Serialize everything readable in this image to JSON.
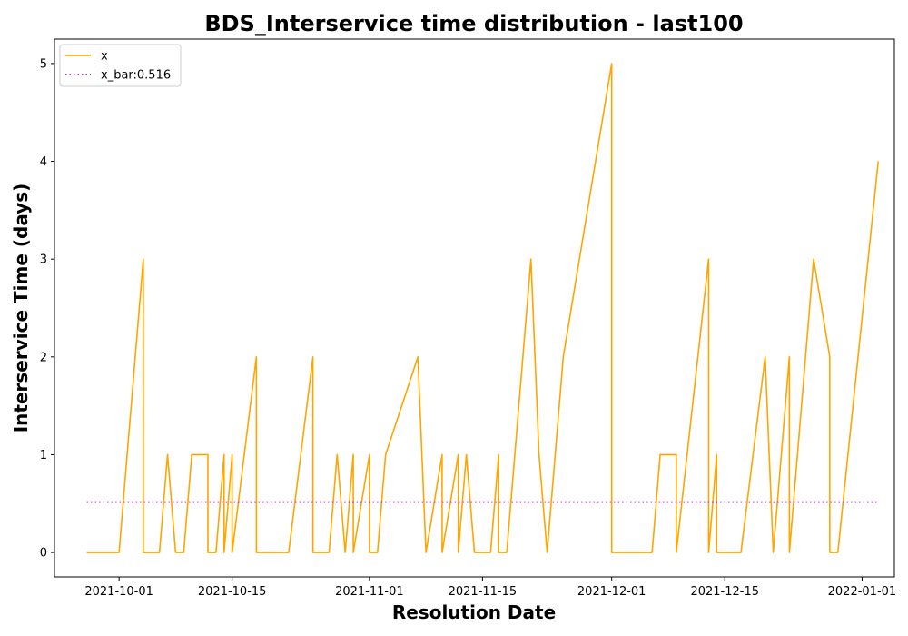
{
  "chart_data": {
    "type": "line",
    "title": "BDS_Interservice time distribution - last100",
    "xlabel": "Resolution Date",
    "ylabel": "Interservice Time (days)",
    "xlim": [
      "2021-09-23",
      "2022-01-05"
    ],
    "ylim": [
      -0.25,
      5.25
    ],
    "xticks": [
      "2021-10-01",
      "2021-10-15",
      "2021-11-01",
      "2021-11-15",
      "2021-12-01",
      "2021-12-15",
      "2022-01-01"
    ],
    "yticks": [
      0,
      1,
      2,
      3,
      4,
      5
    ],
    "grid": false,
    "legend_position": "top-left",
    "series": [
      {
        "name": "x",
        "color": "#ffa500",
        "style": "solid",
        "points": [
          [
            "2021-09-27",
            0
          ],
          [
            "2021-09-28",
            0
          ],
          [
            "2021-09-29",
            0
          ],
          [
            "2021-09-30",
            0
          ],
          [
            "2021-10-01",
            0
          ],
          [
            "2021-10-04",
            3
          ],
          [
            "2021-10-04",
            0
          ],
          [
            "2021-10-05",
            0
          ],
          [
            "2021-10-06",
            0
          ],
          [
            "2021-10-07",
            1
          ],
          [
            "2021-10-08",
            0
          ],
          [
            "2021-10-09",
            0
          ],
          [
            "2021-10-10",
            1
          ],
          [
            "2021-10-11",
            1
          ],
          [
            "2021-10-12",
            1
          ],
          [
            "2021-10-12",
            0
          ],
          [
            "2021-10-13",
            0
          ],
          [
            "2021-10-14",
            1
          ],
          [
            "2021-10-14",
            0
          ],
          [
            "2021-10-15",
            1
          ],
          [
            "2021-10-15",
            0
          ],
          [
            "2021-10-18",
            2
          ],
          [
            "2021-10-18",
            0
          ],
          [
            "2021-10-20",
            0
          ],
          [
            "2021-10-22",
            0
          ],
          [
            "2021-10-25",
            2
          ],
          [
            "2021-10-25",
            0
          ],
          [
            "2021-10-26",
            0
          ],
          [
            "2021-10-27",
            0
          ],
          [
            "2021-10-28",
            1
          ],
          [
            "2021-10-29",
            0
          ],
          [
            "2021-10-30",
            1
          ],
          [
            "2021-10-30",
            0
          ],
          [
            "2021-11-01",
            1
          ],
          [
            "2021-11-01",
            0
          ],
          [
            "2021-11-02",
            0
          ],
          [
            "2021-11-03",
            1
          ],
          [
            "2021-11-07",
            2
          ],
          [
            "2021-11-08",
            0
          ],
          [
            "2021-11-10",
            1
          ],
          [
            "2021-11-10",
            0
          ],
          [
            "2021-11-12",
            1
          ],
          [
            "2021-11-12",
            0
          ],
          [
            "2021-11-13",
            1
          ],
          [
            "2021-11-14",
            0
          ],
          [
            "2021-11-15",
            0
          ],
          [
            "2021-11-16",
            0
          ],
          [
            "2021-11-17",
            1
          ],
          [
            "2021-11-17",
            0
          ],
          [
            "2021-11-18",
            0
          ],
          [
            "2021-11-21",
            3
          ],
          [
            "2021-11-22",
            1
          ],
          [
            "2021-11-23",
            0
          ],
          [
            "2021-11-25",
            2
          ],
          [
            "2021-12-01",
            5
          ],
          [
            "2021-12-01",
            0
          ],
          [
            "2021-12-06",
            0
          ],
          [
            "2021-12-07",
            1
          ],
          [
            "2021-12-09",
            1
          ],
          [
            "2021-12-09",
            0
          ],
          [
            "2021-12-13",
            3
          ],
          [
            "2021-12-13",
            0
          ],
          [
            "2021-12-14",
            1
          ],
          [
            "2021-12-14",
            0
          ],
          [
            "2021-12-17",
            0
          ],
          [
            "2021-12-20",
            2
          ],
          [
            "2021-12-21",
            0
          ],
          [
            "2021-12-22",
            1
          ],
          [
            "2021-12-23",
            2
          ],
          [
            "2021-12-23",
            0
          ],
          [
            "2021-12-26",
            3
          ],
          [
            "2021-12-28",
            2
          ],
          [
            "2021-12-28",
            0
          ],
          [
            "2021-12-29",
            0
          ],
          [
            "2022-01-03",
            4
          ]
        ]
      },
      {
        "name": "x_bar:0.516",
        "color": "#800080",
        "style": "dotted",
        "points": [
          [
            "2021-09-27",
            0.516
          ],
          [
            "2022-01-03",
            0.516
          ]
        ]
      }
    ]
  }
}
